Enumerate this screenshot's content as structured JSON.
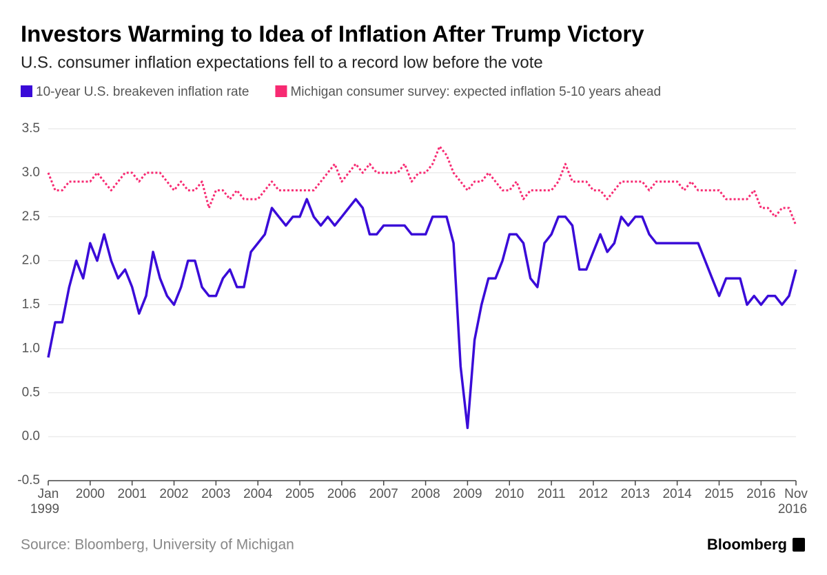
{
  "chart_data": {
    "type": "line",
    "title": "Investors Warming to Idea of Inflation After Trump Victory",
    "subtitle": "U.S. consumer inflation expectations fell to a record low before the vote",
    "source": "Source: Bloomberg, University of Michigan",
    "logo": "Bloomberg",
    "x": [
      "1999-01",
      "1999-03",
      "1999-05",
      "1999-07",
      "1999-09",
      "1999-11",
      "2000-01",
      "2000-03",
      "2000-05",
      "2000-07",
      "2000-09",
      "2000-11",
      "2001-01",
      "2001-03",
      "2001-05",
      "2001-07",
      "2001-09",
      "2001-11",
      "2002-01",
      "2002-03",
      "2002-05",
      "2002-07",
      "2002-09",
      "2002-11",
      "2003-01",
      "2003-03",
      "2003-05",
      "2003-07",
      "2003-09",
      "2003-11",
      "2004-01",
      "2004-03",
      "2004-05",
      "2004-07",
      "2004-09",
      "2004-11",
      "2005-01",
      "2005-03",
      "2005-05",
      "2005-07",
      "2005-09",
      "2005-11",
      "2006-01",
      "2006-03",
      "2006-05",
      "2006-07",
      "2006-09",
      "2006-11",
      "2007-01",
      "2007-03",
      "2007-05",
      "2007-07",
      "2007-09",
      "2007-11",
      "2008-01",
      "2008-03",
      "2008-05",
      "2008-07",
      "2008-09",
      "2008-11",
      "2009-01",
      "2009-03",
      "2009-05",
      "2009-07",
      "2009-09",
      "2009-11",
      "2010-01",
      "2010-03",
      "2010-05",
      "2010-07",
      "2010-09",
      "2010-11",
      "2011-01",
      "2011-03",
      "2011-05",
      "2011-07",
      "2011-09",
      "2011-11",
      "2012-01",
      "2012-03",
      "2012-05",
      "2012-07",
      "2012-09",
      "2012-11",
      "2013-01",
      "2013-03",
      "2013-05",
      "2013-07",
      "2013-09",
      "2013-11",
      "2014-01",
      "2014-03",
      "2014-05",
      "2014-07",
      "2014-09",
      "2014-11",
      "2015-01",
      "2015-03",
      "2015-05",
      "2015-07",
      "2015-09",
      "2015-11",
      "2016-01",
      "2016-03",
      "2016-05",
      "2016-07",
      "2016-09",
      "2016-11"
    ],
    "series": [
      {
        "name": "10-year U.S. breakeven inflation rate",
        "color": "#3a0bd8",
        "style": "solid",
        "values": [
          0.9,
          1.3,
          1.3,
          1.7,
          2.0,
          1.8,
          2.2,
          2.0,
          2.3,
          2.0,
          1.8,
          1.9,
          1.7,
          1.4,
          1.6,
          2.1,
          1.8,
          1.6,
          1.5,
          1.7,
          2.0,
          2.0,
          1.7,
          1.6,
          1.6,
          1.8,
          1.9,
          1.7,
          1.7,
          2.1,
          2.2,
          2.3,
          2.6,
          2.5,
          2.4,
          2.5,
          2.5,
          2.7,
          2.5,
          2.4,
          2.5,
          2.4,
          2.5,
          2.6,
          2.7,
          2.6,
          2.3,
          2.3,
          2.4,
          2.4,
          2.4,
          2.4,
          2.3,
          2.3,
          2.3,
          2.5,
          2.5,
          2.5,
          2.2,
          0.8,
          0.1,
          1.1,
          1.5,
          1.8,
          1.8,
          2.0,
          2.3,
          2.3,
          2.2,
          1.8,
          1.7,
          2.2,
          2.3,
          2.5,
          2.5,
          2.4,
          1.9,
          1.9,
          2.1,
          2.3,
          2.1,
          2.2,
          2.5,
          2.4,
          2.5,
          2.5,
          2.3,
          2.2,
          2.2,
          2.2,
          2.2,
          2.2,
          2.2,
          2.2,
          2.0,
          1.8,
          1.6,
          1.8,
          1.8,
          1.8,
          1.5,
          1.6,
          1.5,
          1.6,
          1.6,
          1.5,
          1.6,
          1.9
        ]
      },
      {
        "name": "Michigan consumer survey: expected inflation 5-10 years ahead",
        "color": "#f72a72",
        "style": "dotted",
        "values": [
          3.0,
          2.8,
          2.8,
          2.9,
          2.9,
          2.9,
          2.9,
          3.0,
          2.9,
          2.8,
          2.9,
          3.0,
          3.0,
          2.9,
          3.0,
          3.0,
          3.0,
          2.9,
          2.8,
          2.9,
          2.8,
          2.8,
          2.9,
          2.6,
          2.8,
          2.8,
          2.7,
          2.8,
          2.7,
          2.7,
          2.7,
          2.8,
          2.9,
          2.8,
          2.8,
          2.8,
          2.8,
          2.8,
          2.8,
          2.9,
          3.0,
          3.1,
          2.9,
          3.0,
          3.1,
          3.0,
          3.1,
          3.0,
          3.0,
          3.0,
          3.0,
          3.1,
          2.9,
          3.0,
          3.0,
          3.1,
          3.3,
          3.2,
          3.0,
          2.9,
          2.8,
          2.9,
          2.9,
          3.0,
          2.9,
          2.8,
          2.8,
          2.9,
          2.7,
          2.8,
          2.8,
          2.8,
          2.8,
          2.9,
          3.1,
          2.9,
          2.9,
          2.9,
          2.8,
          2.8,
          2.7,
          2.8,
          2.9,
          2.9,
          2.9,
          2.9,
          2.8,
          2.9,
          2.9,
          2.9,
          2.9,
          2.8,
          2.9,
          2.8,
          2.8,
          2.8,
          2.8,
          2.7,
          2.7,
          2.7,
          2.7,
          2.8,
          2.6,
          2.6,
          2.5,
          2.6,
          2.6,
          2.4
        ]
      }
    ],
    "xlim": [
      "1999-01",
      "2016-11"
    ],
    "xticks": [
      {
        "value": "1999-01",
        "label": "Jan 1999"
      },
      {
        "value": "2000-01",
        "label": "2000"
      },
      {
        "value": "2001-01",
        "label": "2001"
      },
      {
        "value": "2002-01",
        "label": "2002"
      },
      {
        "value": "2003-01",
        "label": "2003"
      },
      {
        "value": "2004-01",
        "label": "2004"
      },
      {
        "value": "2005-01",
        "label": "2005"
      },
      {
        "value": "2006-01",
        "label": "2006"
      },
      {
        "value": "2007-01",
        "label": "2007"
      },
      {
        "value": "2008-01",
        "label": "2008"
      },
      {
        "value": "2009-01",
        "label": "2009"
      },
      {
        "value": "2010-01",
        "label": "2010"
      },
      {
        "value": "2011-01",
        "label": "2011"
      },
      {
        "value": "2012-01",
        "label": "2012"
      },
      {
        "value": "2013-01",
        "label": "2013"
      },
      {
        "value": "2014-01",
        "label": "2014"
      },
      {
        "value": "2015-01",
        "label": "2015"
      },
      {
        "value": "2016-01",
        "label": "2016"
      },
      {
        "value": "2016-11",
        "label": "Nov 2016"
      }
    ],
    "ylim": [
      -0.5,
      3.5
    ],
    "yticks": [
      -0.5,
      {
        "value": 0,
        "label": "0.0"
      },
      0.5,
      {
        "value": 1,
        "label": "1.0"
      },
      1.5,
      {
        "value": 2,
        "label": "2.0"
      },
      2.5,
      {
        "value": 3,
        "label": "3.0"
      },
      3.5
    ],
    "grid": true
  }
}
